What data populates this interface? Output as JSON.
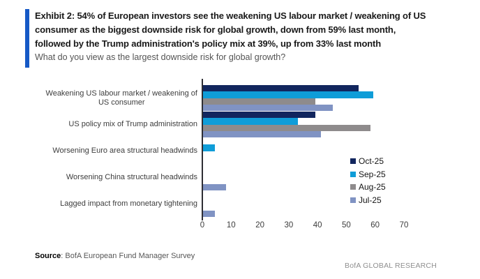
{
  "header": {
    "accent_color": "#1659c6",
    "title_lines": [
      "Exhibit 2: 54% of European investors see the weakening US labour market / weakening of US",
      "consumer as the biggest downside risk for global growth, down from 59% last month,",
      "followed by the Trump administration's policy mix at 39%, up from 33% last month"
    ],
    "subtitle": "What do you view as the largest downside risk for global growth?"
  },
  "chart_data": {
    "type": "bar",
    "orientation": "horizontal",
    "title": "What do you view as the largest downside risk for global growth?",
    "categories": [
      "Weakening US labour market / weakening of US consumer",
      "US policy mix of Trump administration",
      "Worsening Euro area structural headwinds",
      "Worsening China structural headwinds",
      "Lagged impact from monetary tightening"
    ],
    "category_label_lines": [
      [
        "Weakening US labour market / weakening of",
        "US consumer"
      ],
      [
        "US policy mix of Trump administration"
      ],
      [
        "Worsening Euro area structural headwinds"
      ],
      [
        "Worsening China structural headwinds"
      ],
      [
        "Lagged impact from monetary tightening"
      ]
    ],
    "series": [
      {
        "name": "Oct-25",
        "color": "#12265e",
        "values": [
          54,
          39,
          0,
          0,
          0
        ]
      },
      {
        "name": "Sep-25",
        "color": "#0f9dd8",
        "values": [
          59,
          33,
          4,
          0,
          0
        ]
      },
      {
        "name": "Aug-25",
        "color": "#8e8b8c",
        "values": [
          39,
          58,
          0,
          0,
          0
        ]
      },
      {
        "name": "Jul-25",
        "color": "#8093c3",
        "values": [
          45,
          41,
          0,
          8,
          4
        ]
      }
    ],
    "x_ticks": [
      0,
      10,
      20,
      30,
      40,
      50,
      60,
      70
    ],
    "xlim": [
      0,
      78
    ],
    "grid": false,
    "legend_position": "inside-right"
  },
  "footer": {
    "source_label": "Source",
    "source_text": ": BofA European Fund Manager Survey",
    "brand": "BofA GLOBAL RESEARCH"
  }
}
